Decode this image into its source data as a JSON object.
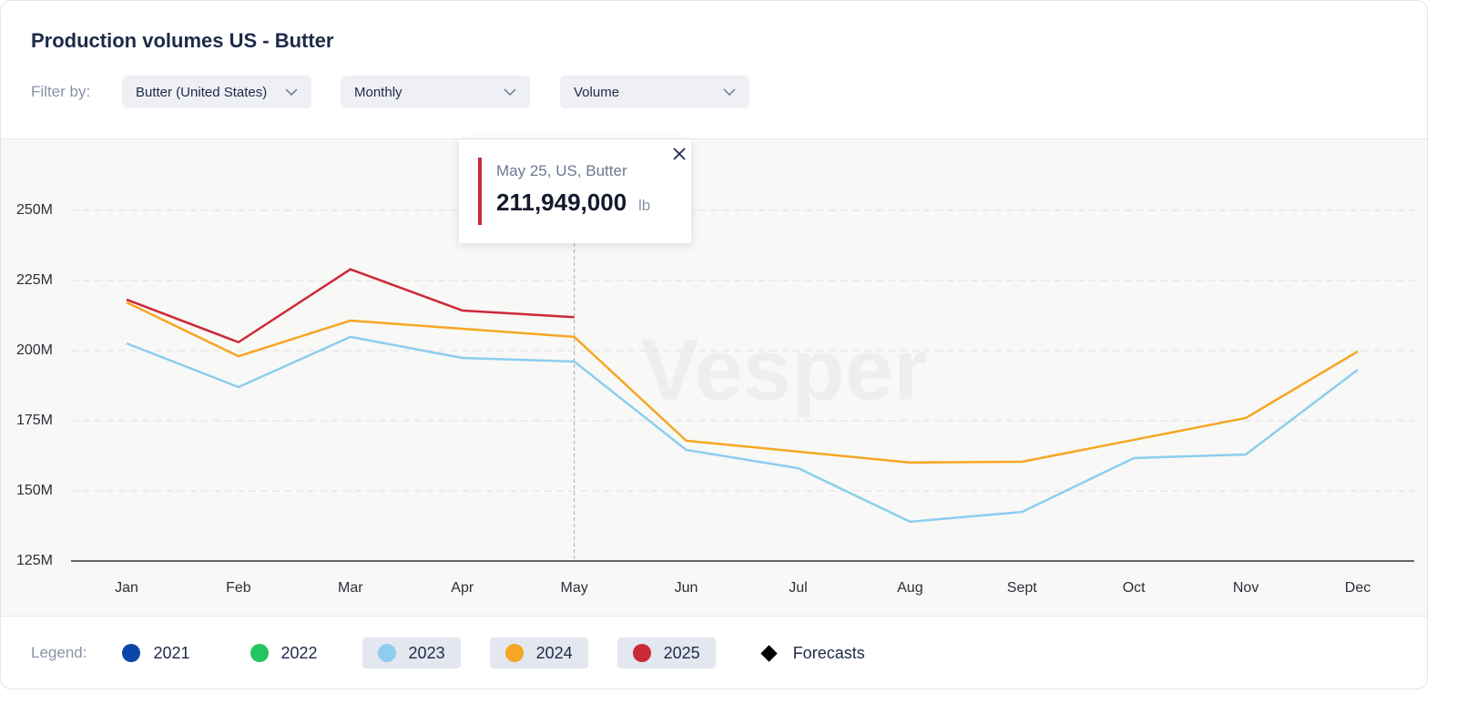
{
  "header": {
    "title": "Production volumes US - Butter"
  },
  "filters": {
    "label": "Filter by:",
    "options": [
      "Butter (United States)",
      "Monthly",
      "Volume"
    ]
  },
  "chart_data": {
    "type": "line",
    "categories": [
      "Jan",
      "Feb",
      "Mar",
      "Apr",
      "May",
      "Jun",
      "Jul",
      "Aug",
      "Sept",
      "Oct",
      "Nov",
      "Dec"
    ],
    "ylim": [
      125000000,
      275000000
    ],
    "yticks": [
      {
        "value": 125000000,
        "label": "125M"
      },
      {
        "value": 150000000,
        "label": "150M"
      },
      {
        "value": 175000000,
        "label": "175M"
      },
      {
        "value": 200000000,
        "label": "200M"
      },
      {
        "value": 225000000,
        "label": "225M"
      },
      {
        "value": 250000000,
        "label": "250M"
      }
    ],
    "grid": true,
    "watermark": "Vesper",
    "legend_label": "Legend:",
    "forecast_label": "Forecasts",
    "series": [
      {
        "name": "2021",
        "color": "#0b47a8",
        "active": false,
        "values": [
          null,
          null,
          null,
          null,
          null,
          null,
          null,
          null,
          null,
          null,
          null,
          null
        ]
      },
      {
        "name": "2022",
        "color": "#22c55e",
        "active": false,
        "values": [
          null,
          null,
          null,
          null,
          null,
          null,
          null,
          null,
          null,
          null,
          null,
          null
        ]
      },
      {
        "name": "2023",
        "color": "#8dcdef",
        "active": true,
        "values": [
          202600000,
          187000000,
          204900000,
          197400000,
          196100000,
          164600000,
          158100000,
          139000000,
          142500000,
          161700000,
          163000000,
          193200000
        ]
      },
      {
        "name": "2024",
        "color": "#f5a623",
        "active": true,
        "values": [
          217200000,
          198000000,
          210700000,
          207800000,
          204900000,
          167900000,
          164000000,
          160100000,
          160400000,
          168200000,
          176000000,
          199700000
        ]
      },
      {
        "name": "2025",
        "color": "#cc2936",
        "active": true,
        "values": [
          218200000,
          203000000,
          229000000,
          214300000,
          211949000,
          null,
          null,
          null,
          null,
          null,
          null,
          null
        ]
      }
    ],
    "tooltip": {
      "title": "May 25, US, Butter",
      "value": 211949000,
      "value_label": "211,949,000",
      "unit": "lb",
      "category_index": 4
    }
  }
}
